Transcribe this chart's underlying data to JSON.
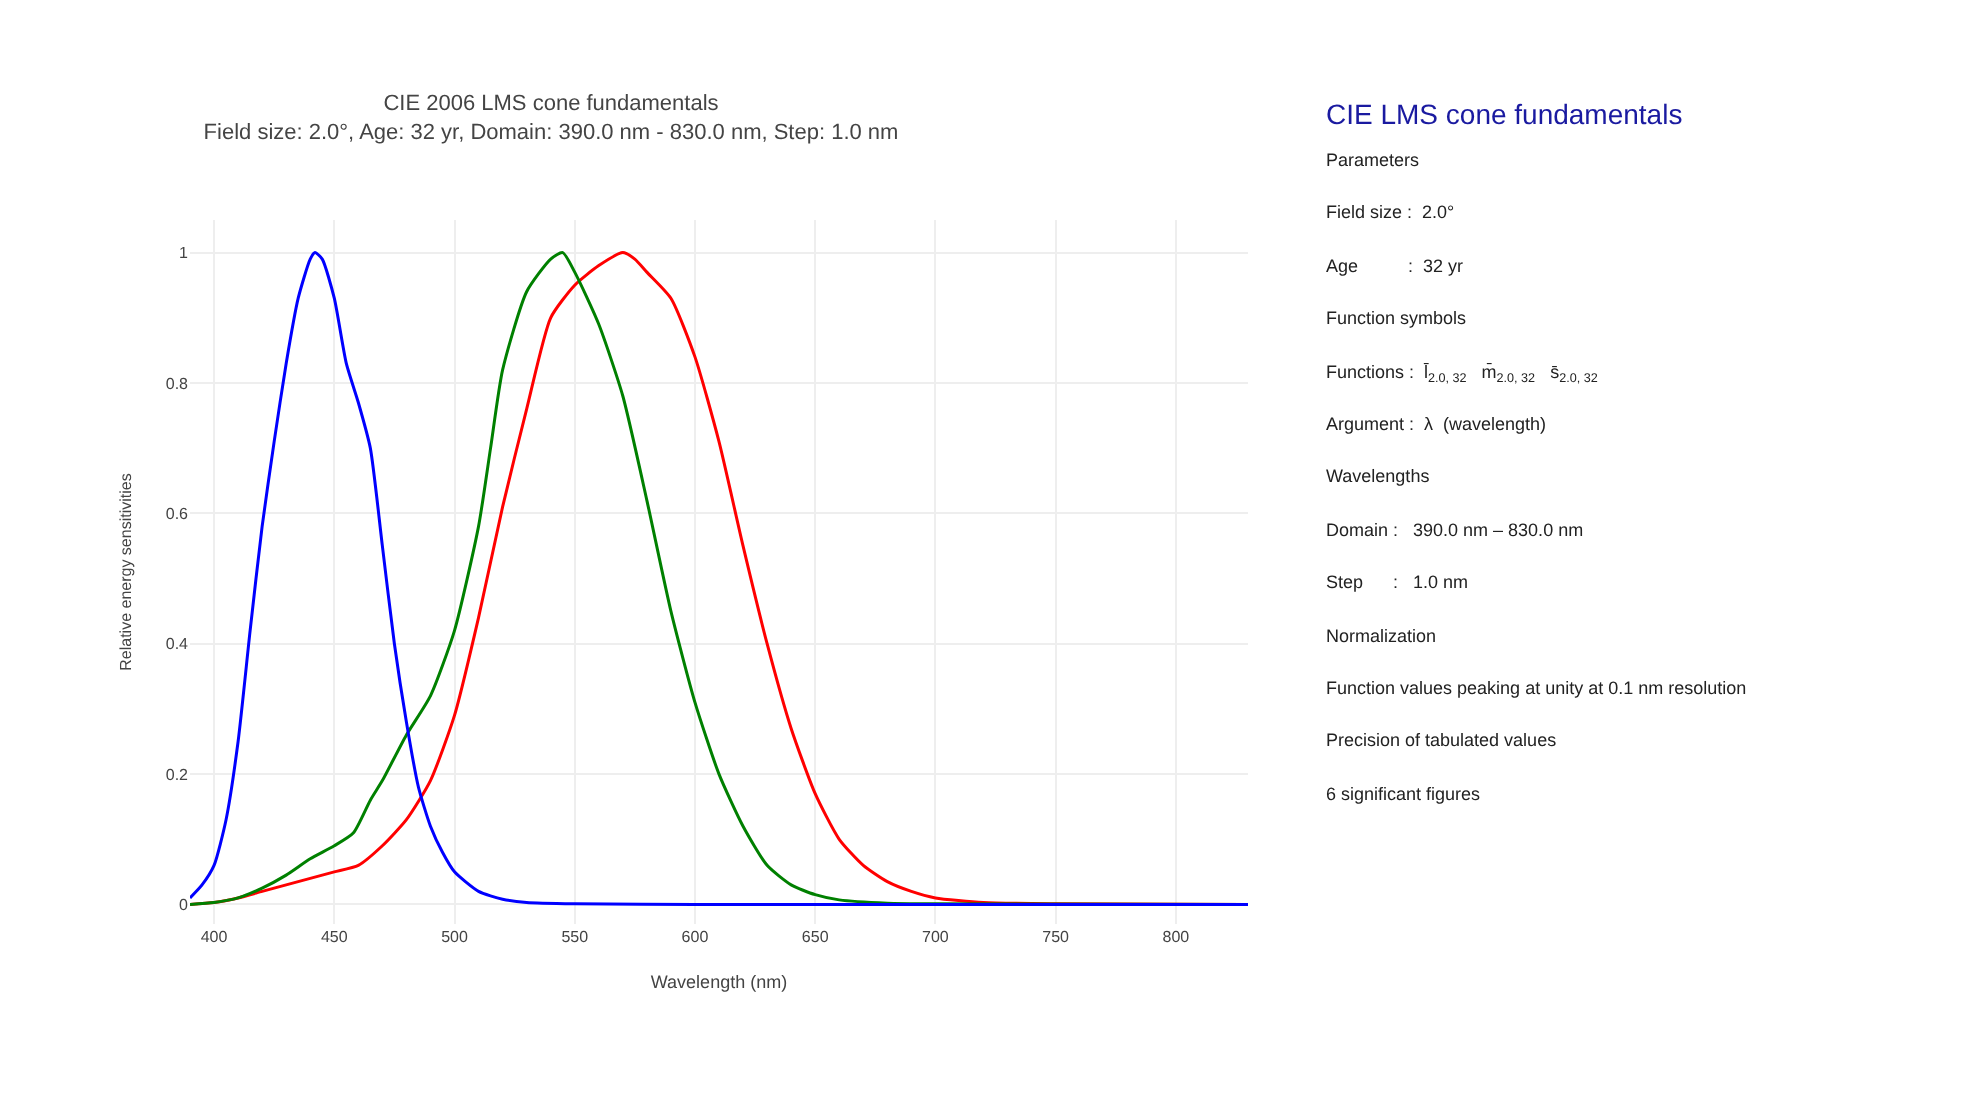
{
  "chart_data": {
    "type": "line",
    "title": "CIE 2006 LMS cone fundamentals",
    "subtitle": "Field size: 2.0°, Age: 32 yr, Domain: 390.0 nm - 830.0 nm, Step: 1.0 nm",
    "xlabel": "Wavelength (nm)",
    "ylabel": "Relative energy sensitivities",
    "xlim": [
      390,
      830
    ],
    "xticks": [
      400,
      450,
      500,
      550,
      600,
      650,
      700,
      750,
      800
    ],
    "ylim": [
      -0.03,
      1.05
    ],
    "yticks": [
      0,
      0.2,
      0.4,
      0.6,
      0.8,
      1
    ],
    "grid": true,
    "marker": "none",
    "line_style": "solid",
    "series": [
      {
        "color": "#ff0000",
        "x": [
          390,
          400,
          410,
          420,
          430,
          440,
          450,
          460,
          470,
          480,
          490,
          500,
          510,
          520,
          530,
          540,
          550,
          560,
          570,
          575,
          580,
          590,
          600,
          610,
          620,
          630,
          640,
          650,
          660,
          670,
          680,
          690,
          700,
          720,
          750,
          830
        ],
        "values": [
          0,
          0.003,
          0.01,
          0.02,
          0.03,
          0.04,
          0.05,
          0.06,
          0.09,
          0.13,
          0.19,
          0.29,
          0.44,
          0.61,
          0.76,
          0.9,
          0.95,
          0.98,
          1.0,
          0.99,
          0.97,
          0.93,
          0.84,
          0.71,
          0.55,
          0.4,
          0.27,
          0.17,
          0.1,
          0.06,
          0.035,
          0.02,
          0.01,
          0.003,
          0.001,
          0
        ]
      },
      {
        "color": "#008000",
        "x": [
          390,
          400,
          410,
          420,
          430,
          440,
          450,
          458,
          465,
          470,
          480,
          490,
          500,
          510,
          515,
          520,
          530,
          540,
          545,
          550,
          560,
          570,
          580,
          590,
          600,
          610,
          620,
          630,
          640,
          650,
          660,
          680,
          700,
          830
        ],
        "values": [
          0,
          0.003,
          0.01,
          0.025,
          0.045,
          0.07,
          0.09,
          0.11,
          0.16,
          0.19,
          0.26,
          0.32,
          0.42,
          0.58,
          0.7,
          0.82,
          0.94,
          0.99,
          1.0,
          0.97,
          0.89,
          0.78,
          0.62,
          0.45,
          0.31,
          0.2,
          0.12,
          0.06,
          0.03,
          0.015,
          0.007,
          0.002,
          0.001,
          0
        ]
      },
      {
        "color": "#0000ff",
        "x": [
          390,
          395,
          400,
          405,
          410,
          415,
          420,
          425,
          430,
          435,
          440,
          442,
          445,
          450,
          455,
          460,
          465,
          470,
          475,
          480,
          485,
          490,
          495,
          500,
          510,
          520,
          530,
          550,
          600,
          830
        ],
        "values": [
          0.01,
          0.03,
          0.06,
          0.13,
          0.25,
          0.42,
          0.58,
          0.71,
          0.83,
          0.93,
          0.99,
          1.0,
          0.99,
          0.93,
          0.83,
          0.77,
          0.7,
          0.55,
          0.4,
          0.28,
          0.18,
          0.12,
          0.08,
          0.05,
          0.02,
          0.008,
          0.003,
          0.001,
          0,
          0
        ]
      }
    ],
    "annotations": [
      "CIE LMS cone fundamentals",
      "Parameters",
      "Field size :  2.0°",
      "Age          :  32 yr",
      "Function symbols",
      "Functions :  l̄$_{2.0, 32}$   m̄$_{2.0, 32}$   s̄$_{2.0, 32}$",
      "Argument :  λ  (wavelength)",
      "Wavelengths",
      "Domain :   390.0 nm – 830.0 nm",
      "Step      :   1.0 nm",
      "Normalization",
      "Function values peaking at unity at 0.1 nm resolution",
      "Precision of tabulated values",
      "6 significant figures"
    ]
  }
}
